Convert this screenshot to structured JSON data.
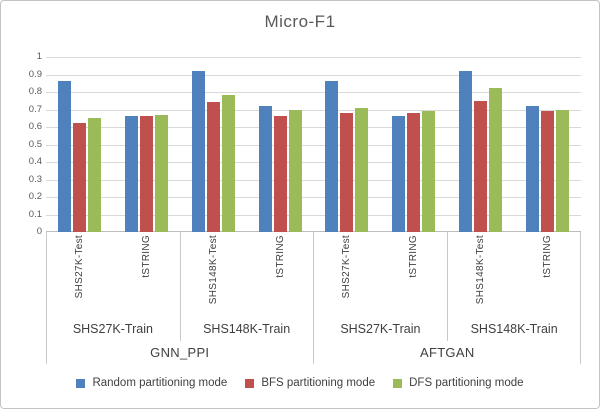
{
  "title": "Micro-F1",
  "theme": {
    "series_blue": "#4F81BD",
    "series_red": "#C0504D",
    "series_green": "#9BBB59",
    "gridline": "#D9D9D9",
    "axis_line": "#BDBDBD",
    "title_text": "#595959",
    "label_text": "#3F3F3F"
  },
  "chart_data": {
    "type": "bar",
    "title": "Micro-F1",
    "xlabel": "",
    "ylabel": "",
    "ylim": [
      0,
      1
    ],
    "ytick_step": 0.1,
    "yticks": [
      "1",
      "0.9",
      "0.8",
      "0.7",
      "0.6",
      "0.5",
      "0.4",
      "0.3",
      "0.2",
      "0.1",
      "0"
    ],
    "grid": true,
    "legend_position": "bottom",
    "categories": [
      "SHS27K-Test",
      "tSTRING",
      "SHS148K-Test",
      "tSTRING",
      "SHS27K-Test",
      "tSTRING",
      "SHS148K-Test",
      "tSTRING"
    ],
    "category_groups_level2": [
      {
        "label": "SHS27K-Train",
        "span": 2
      },
      {
        "label": "SHS148K-Train",
        "span": 2
      },
      {
        "label": "SHS27K-Train",
        "span": 2
      },
      {
        "label": "SHS148K-Train",
        "span": 2
      }
    ],
    "category_groups_level3": [
      {
        "label": "GNN_PPI",
        "span": 4
      },
      {
        "label": "AFTGAN",
        "span": 4
      }
    ],
    "series": [
      {
        "key": "random",
        "name": "Random partitioning mode",
        "color": "#4F81BD",
        "values": [
          0.86,
          0.66,
          0.92,
          0.72,
          0.86,
          0.66,
          0.92,
          0.72
        ]
      },
      {
        "key": "bfs",
        "name": "BFS partitioning mode",
        "color": "#C0504D",
        "values": [
          0.62,
          0.66,
          0.74,
          0.66,
          0.68,
          0.68,
          0.75,
          0.69
        ]
      },
      {
        "key": "dfs",
        "name": "DFS partitioning mode",
        "color": "#9BBB59",
        "values": [
          0.65,
          0.67,
          0.78,
          0.7,
          0.71,
          0.69,
          0.82,
          0.7
        ]
      }
    ]
  }
}
